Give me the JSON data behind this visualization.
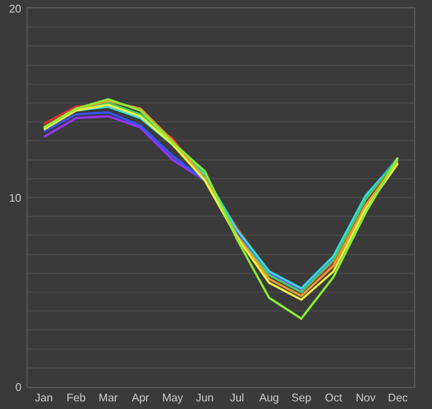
{
  "chart_data": {
    "type": "line",
    "categories": [
      "Jan",
      "Feb",
      "Mar",
      "Apr",
      "May",
      "Jun",
      "Jul",
      "Aug",
      "Sep",
      "Oct",
      "Nov",
      "Dec"
    ],
    "series": [
      {
        "color": "#e03030",
        "values": [
          13.9,
          14.8,
          14.9,
          14.4,
          13.1,
          11.0,
          8.4,
          6.0,
          5.0,
          6.6,
          9.9,
          12.0
        ]
      },
      {
        "color": "#9933ff",
        "values": [
          13.2,
          14.2,
          14.3,
          13.7,
          12.0,
          10.9,
          8.2,
          6.0,
          5.1,
          6.8,
          null,
          null
        ]
      },
      {
        "color": "#3355ff",
        "values": [
          13.5,
          14.4,
          14.5,
          13.8,
          12.2,
          10.9,
          8.2,
          6.1,
          5.2,
          6.9,
          10.1,
          12.1
        ]
      },
      {
        "color": "#33dddd",
        "values": [
          13.7,
          14.6,
          14.8,
          14.2,
          12.8,
          11.2,
          8.3,
          6.1,
          5.2,
          6.9,
          10.1,
          12.0
        ]
      },
      {
        "color": "#44cc66",
        "values": [
          13.7,
          14.7,
          15.0,
          14.4,
          12.9,
          11.3,
          8.0,
          5.9,
          5.0,
          6.7,
          9.9,
          12.1
        ]
      },
      {
        "color": "#ee9933",
        "values": [
          13.7,
          14.7,
          15.1,
          14.7,
          13.0,
          11.0,
          8.0,
          5.7,
          4.8,
          6.4,
          9.6,
          11.9
        ]
      },
      {
        "color": "#eeee44",
        "values": [
          13.6,
          14.6,
          14.9,
          14.3,
          12.8,
          10.9,
          7.9,
          5.5,
          4.6,
          6.1,
          9.4,
          11.8
        ]
      },
      {
        "color": "#88ee33",
        "values": [
          13.7,
          14.7,
          15.2,
          14.6,
          12.9,
          11.4,
          7.8,
          4.7,
          3.6,
          5.8,
          9.2,
          12.1
        ]
      }
    ],
    "ylim": [
      0,
      20
    ],
    "yticks": [
      0,
      {
        "value": 1,
        "label": null
      },
      {
        "value": 2,
        "label": null
      },
      {
        "value": 3,
        "label": null
      },
      {
        "value": 4,
        "label": null
      },
      {
        "value": 5,
        "label": null
      },
      {
        "value": 6,
        "label": null
      },
      {
        "value": 7,
        "label": null
      },
      {
        "value": 8,
        "label": null
      },
      {
        "value": 9,
        "label": null
      },
      10,
      {
        "value": 11,
        "label": null
      },
      {
        "value": 12,
        "label": null
      },
      {
        "value": 13,
        "label": null
      },
      {
        "value": 14,
        "label": null
      },
      {
        "value": 15,
        "label": null
      },
      {
        "value": 16,
        "label": null
      },
      {
        "value": 17,
        "label": null
      },
      {
        "value": 18,
        "label": null
      },
      {
        "value": 19,
        "label": null
      },
      20
    ],
    "grid": "y",
    "marker": "none",
    "line_style": "solid"
  }
}
